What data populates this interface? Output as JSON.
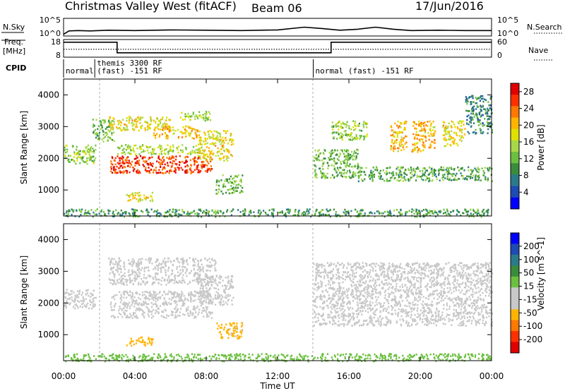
{
  "header": {
    "title": "Christmas Valley West (fitACF)",
    "beam": "Beam 06",
    "date": "17/Jun/2016"
  },
  "top_labels": {
    "nsky": "N.Sky",
    "nsearch": "N.Search",
    "freq_line1": "Freq.",
    "freq_line2": "[MHz]",
    "nave": "Nave",
    "cpid": "CPID",
    "noise_ticks_left": [
      "10^5",
      "10^0"
    ],
    "noise_ticks_right": [
      "10^5",
      "10^0"
    ],
    "freq_ticks": [
      "18",
      "8"
    ],
    "nave_ticks": [
      "60",
      "0"
    ]
  },
  "cpid_segments": [
    {
      "start_hr": 0,
      "end_hr": 1.75,
      "label": "normal"
    },
    {
      "start_hr": 1.75,
      "end_hr": 14.0,
      "label": "themis 3300 RF\n(fast) -151 RF"
    },
    {
      "start_hr": 14.0,
      "end_hr": 24.0,
      "label": "normal (fast) -151 RF"
    }
  ],
  "chart_data": [
    {
      "type": "line",
      "title": "N.Sky / N.Search",
      "x_unit": "hours UT",
      "series": [
        {
          "name": "N.Sky",
          "x": [
            0,
            0.3,
            0.8,
            1.5,
            2.5,
            4,
            6,
            8,
            10,
            12,
            13.5,
            14.5,
            15.5,
            16.5,
            17.5,
            18.5,
            19.5,
            21,
            22.5,
            24
          ],
          "values": [
            0.5,
            1.5,
            1.6,
            1.5,
            1.7,
            1.6,
            1.8,
            1.7,
            1.6,
            1.8,
            2.6,
            2.2,
            1.7,
            2.0,
            2.6,
            2.0,
            1.6,
            1.7,
            1.6,
            1.6
          ]
        }
      ]
    },
    {
      "type": "line",
      "title": "Freq / Nave",
      "x_unit": "hours UT",
      "series": [
        {
          "name": "Freq.",
          "x": [
            0,
            3,
            3,
            15,
            15,
            24
          ],
          "values": [
            16.5,
            16.5,
            10.5,
            10.5,
            16.5,
            16.5
          ]
        },
        {
          "name": "Nave",
          "x": [
            0,
            24
          ],
          "values": [
            27,
            27
          ]
        }
      ]
    },
    {
      "type": "heatmap",
      "panel": "power",
      "xlabel": "Time UT",
      "ylabel": "Slant Range [km]",
      "xlim": [
        0,
        24
      ],
      "ylim": [
        180,
        4500
      ],
      "x_ticks": [
        "00:00",
        "04:00",
        "08:00",
        "12:00",
        "16:00",
        "20:00",
        "00:00"
      ],
      "y_ticks": [
        1000,
        2000,
        3000,
        4000
      ],
      "colorbar": {
        "label": "Power [dB]",
        "ticks": [
          4,
          8,
          12,
          16,
          20,
          24,
          28
        ],
        "range": [
          0,
          30
        ],
        "colors": [
          "#0000ff",
          "#1e4bb4",
          "#2b7a8c",
          "#3a8c3c",
          "#6cc040",
          "#a8d84a",
          "#e0e000",
          "#ffb400",
          "#ff7800",
          "#ff3000",
          "#e00000"
        ]
      },
      "regions": [
        {
          "t0": 0.0,
          "t1": 1.8,
          "r0": 1850,
          "r1": 2450,
          "value": 14
        },
        {
          "t0": 1.6,
          "t1": 2.8,
          "r0": 2550,
          "r1": 3250,
          "value": 12
        },
        {
          "t0": 2.5,
          "t1": 6.0,
          "r0": 2900,
          "r1": 3350,
          "value": 18
        },
        {
          "t0": 5.0,
          "t1": 7.5,
          "r0": 2650,
          "r1": 3050,
          "value": 20
        },
        {
          "t0": 6.5,
          "t1": 8.2,
          "r0": 3200,
          "r1": 3500,
          "value": 15
        },
        {
          "t0": 2.6,
          "t1": 8.3,
          "r0": 1550,
          "r1": 2100,
          "value": 26
        },
        {
          "t0": 3.0,
          "t1": 7.5,
          "r0": 2150,
          "r1": 2450,
          "value": 15
        },
        {
          "t0": 7.5,
          "t1": 9.5,
          "r0": 1950,
          "r1": 2900,
          "value": 18
        },
        {
          "t0": 3.5,
          "t1": 5.0,
          "r0": 650,
          "r1": 950,
          "value": 18
        },
        {
          "t0": 8.5,
          "t1": 10.0,
          "r0": 900,
          "r1": 1500,
          "value": 12
        },
        {
          "t0": 0.0,
          "t1": 24.0,
          "r0": 180,
          "r1": 420,
          "value": 10
        },
        {
          "t0": 14.0,
          "t1": 16.5,
          "r0": 1400,
          "r1": 2300,
          "value": 12
        },
        {
          "t0": 15.0,
          "t1": 17.0,
          "r0": 2600,
          "r1": 3200,
          "value": 14
        },
        {
          "t0": 18.3,
          "t1": 19.2,
          "r0": 2200,
          "r1": 3200,
          "value": 20
        },
        {
          "t0": 19.5,
          "t1": 20.8,
          "r0": 2200,
          "r1": 3200,
          "value": 20
        },
        {
          "t0": 21.2,
          "t1": 22.5,
          "r0": 2400,
          "r1": 3200,
          "value": 18
        },
        {
          "t0": 16.5,
          "t1": 24.0,
          "r0": 1300,
          "r1": 1750,
          "value": 11
        },
        {
          "t0": 22.5,
          "t1": 24.0,
          "r0": 2800,
          "r1": 4000,
          "value": 8
        }
      ]
    },
    {
      "type": "heatmap",
      "panel": "velocity",
      "xlabel": "Time UT",
      "ylabel": "Slant Range [km]",
      "xlim": [
        0,
        24
      ],
      "ylim": [
        180,
        4500
      ],
      "x_ticks": [
        "00:00",
        "04:00",
        "08:00",
        "12:00",
        "16:00",
        "20:00",
        "00:00"
      ],
      "y_ticks": [
        1000,
        2000,
        3000,
        4000
      ],
      "colorbar": {
        "label": "Velocity [m s^-1]",
        "ticks": [
          200,
          100,
          50,
          15,
          -15,
          -50,
          -100,
          -200
        ],
        "range": [
          -250,
          250
        ],
        "colors": [
          "#e00000",
          "#ff3000",
          "#ff7800",
          "#ffb400",
          "#c8c8c8",
          "#c8c8c8",
          "#6cc040",
          "#3a8c3c",
          "#2b7a8c",
          "#1e4bb4",
          "#0000ff"
        ]
      },
      "regions": [
        {
          "t0": 0.0,
          "t1": 1.8,
          "r0": 1850,
          "r1": 2450,
          "value": 0
        },
        {
          "t0": 2.5,
          "t1": 8.5,
          "r0": 2600,
          "r1": 3450,
          "value": 0
        },
        {
          "t0": 2.6,
          "t1": 8.3,
          "r0": 1550,
          "r1": 2400,
          "value": 0
        },
        {
          "t0": 7.5,
          "t1": 9.5,
          "r0": 1950,
          "r1": 2900,
          "value": 0
        },
        {
          "t0": 3.5,
          "t1": 5.0,
          "r0": 650,
          "r1": 950,
          "value": -90
        },
        {
          "t0": 8.5,
          "t1": 10.0,
          "r0": 900,
          "r1": 1400,
          "value": -80
        },
        {
          "t0": 0.0,
          "t1": 24.0,
          "r0": 180,
          "r1": 420,
          "value": 45
        },
        {
          "t0": 14.0,
          "t1": 24.0,
          "r0": 1300,
          "r1": 3300,
          "value": 0
        }
      ]
    }
  ]
}
